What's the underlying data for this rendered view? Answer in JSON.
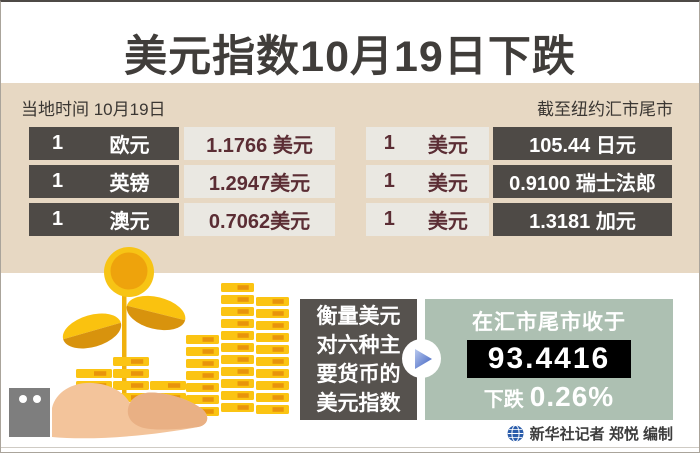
{
  "title": "美元指数10月19日下跌",
  "band": {
    "local_time": "当地时间 10月19日",
    "cutoff": "截至纽约汇市尾市"
  },
  "rates_left": [
    {
      "amount": "1",
      "currency": "欧元",
      "value": "1.1766 美元"
    },
    {
      "amount": "1",
      "currency": "英镑",
      "value": "1.2947美元"
    },
    {
      "amount": "1",
      "currency": "澳元",
      "value": "0.7062美元"
    }
  ],
  "rates_right": [
    {
      "amount": "1",
      "currency": "美元",
      "value": "105.44 日元"
    },
    {
      "amount": "1",
      "currency": "美元",
      "value": "0.9100 瑞士法郎"
    },
    {
      "amount": "1",
      "currency": "美元",
      "value": "1.3181 加元"
    }
  ],
  "index_panel": {
    "measure_line1": "衡量美元",
    "measure_line2": "对六种主",
    "measure_line3": "要货币的",
    "measure_line4": "美元指数",
    "close_label": "在汇市尾市收于",
    "index_value": "93.4416",
    "change_label": "下跌",
    "change_value": "0.26%"
  },
  "credit_text": "新华社记者 郑悦 编制",
  "icons": {
    "arrow": "arrow-right-icon",
    "globe": "xinhua-globe-icon"
  },
  "colors": {
    "band_beige": "#e7d8c3",
    "cell_dark": "#4e4a46",
    "cell_light": "#eae8e2",
    "value_maroon": "#5b2d34",
    "panel_green": "#adc0b2",
    "index_bg": "#000000",
    "coin_gold": "#fbc413",
    "coin_orange": "#e8940b",
    "arrow_blue": "#3c5fc0"
  },
  "chart_data": {
    "type": "table",
    "title": "美元指数10月19日下跌",
    "date_note": "当地时间 10月19日",
    "cutoff_note": "截至纽约汇市尾市",
    "columns": [
      "base_amount",
      "base_currency",
      "quote"
    ],
    "rows": [
      [
        1,
        "欧元",
        "1.1766 美元"
      ],
      [
        1,
        "英镑",
        "1.2947 美元"
      ],
      [
        1,
        "澳元",
        "0.7062 美元"
      ],
      [
        1,
        "美元",
        "105.44 日元"
      ],
      [
        1,
        "美元",
        "0.9100 瑞士法郎"
      ],
      [
        1,
        "美元",
        "1.3181 加元"
      ]
    ],
    "dollar_index": {
      "description": "衡量美元对六种主要货币的美元指数 在汇市尾市收于",
      "close": 93.4416,
      "change": "下跌 0.26%"
    }
  }
}
